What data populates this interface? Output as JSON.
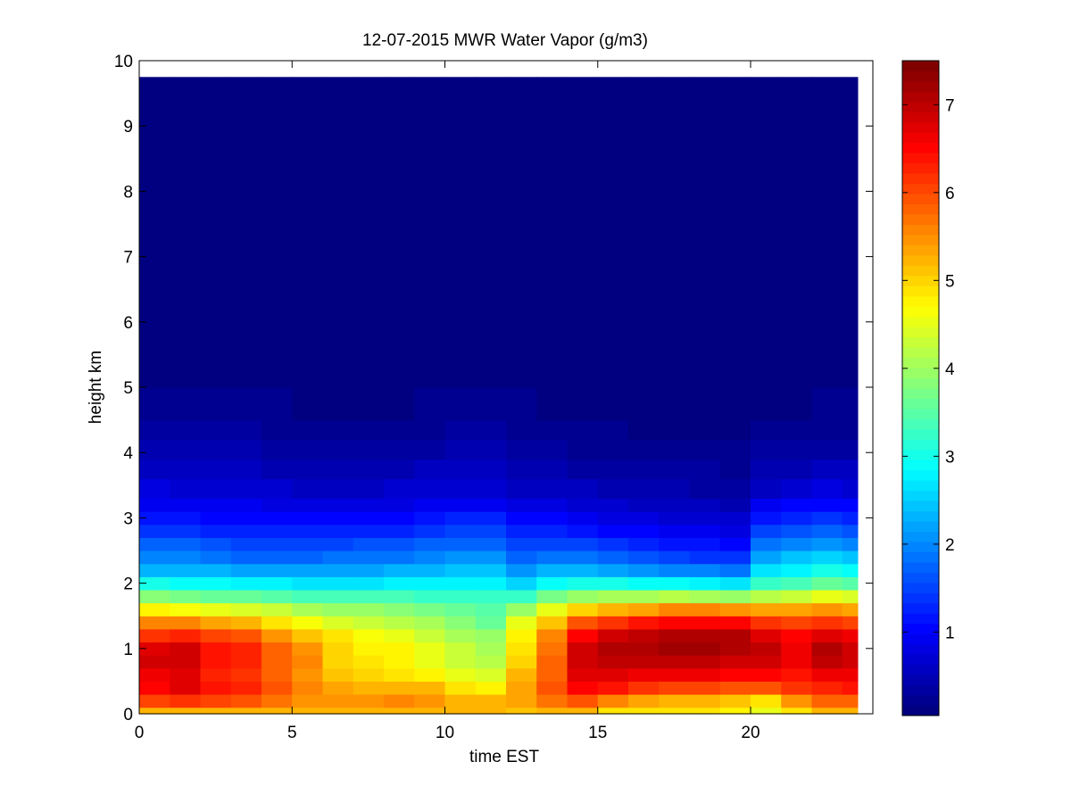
{
  "chart_data": {
    "type": "heatmap",
    "title": "12-07-2015 MWR Water Vapor (g/m3)",
    "xlabel": "time EST",
    "ylabel": "height km",
    "xlim": [
      0,
      24
    ],
    "ylim": [
      0,
      10
    ],
    "x_ticks": [
      "0",
      "5",
      "10",
      "15",
      "20"
    ],
    "x_tick_values": [
      0,
      5,
      10,
      15,
      20
    ],
    "y_ticks": [
      "0",
      "1",
      "2",
      "3",
      "4",
      "5",
      "6",
      "7",
      "8",
      "9",
      "10"
    ],
    "y_tick_values": [
      0,
      1,
      2,
      3,
      4,
      5,
      6,
      7,
      8,
      9,
      10
    ],
    "colorbar": {
      "range": [
        0.05,
        7.5
      ],
      "ticks": [
        "1",
        "2",
        "3",
        "4",
        "5",
        "6",
        "7"
      ],
      "tick_values": [
        1,
        2,
        3,
        4,
        5,
        6,
        7
      ],
      "colormap": "jet"
    },
    "time_hours": [
      0.5,
      1.5,
      2.5,
      3.5,
      4.5,
      5.5,
      6.5,
      7.5,
      8.5,
      9.5,
      10.5,
      11.5,
      12.5,
      13.5,
      14.5,
      15.5,
      16.5,
      17.5,
      18.5,
      19.5,
      20.5,
      21.5,
      22.5,
      23.5
    ],
    "profile_heights_km": [
      0,
      0.1,
      0.3,
      0.5,
      0.7,
      0.9,
      1.1,
      1.3,
      1.5,
      1.7,
      1.9,
      2.1,
      2.3,
      2.5,
      2.7,
      2.9,
      3.1,
      3.3,
      3.6,
      3.9,
      4.2,
      4.5,
      5.0,
      9.75
    ],
    "profiles": [
      [
        5.0,
        5.5,
        6.6,
        6.6,
        6.8,
        7.0,
        6.6,
        5.9,
        5.2,
        4.3,
        3.3,
        2.6,
        2.1,
        1.8,
        1.5,
        1.2,
        1.0,
        0.85,
        0.65,
        0.45,
        0.3,
        0.2,
        0.08,
        0.05
      ],
      [
        5.0,
        5.6,
        6.8,
        6.7,
        6.9,
        7.0,
        6.7,
        6.0,
        5.1,
        4.2,
        3.2,
        2.6,
        2.1,
        1.8,
        1.5,
        1.2,
        1.0,
        0.8,
        0.6,
        0.45,
        0.3,
        0.2,
        0.08,
        0.05
      ],
      [
        5.0,
        5.6,
        6.5,
        6.3,
        6.3,
        6.5,
        6.4,
        5.8,
        5.0,
        4.1,
        3.2,
        2.5,
        2.0,
        1.7,
        1.4,
        1.15,
        0.95,
        0.8,
        0.6,
        0.42,
        0.3,
        0.2,
        0.08,
        0.05
      ],
      [
        5.0,
        5.5,
        6.4,
        6.2,
        6.2,
        6.4,
        6.3,
        5.6,
        4.8,
        4.0,
        3.1,
        2.4,
        1.9,
        1.6,
        1.35,
        1.1,
        0.9,
        0.75,
        0.55,
        0.4,
        0.3,
        0.2,
        0.08,
        0.05
      ],
      [
        5.0,
        5.5,
        6.0,
        5.9,
        5.8,
        5.9,
        5.8,
        5.2,
        4.6,
        3.9,
        3.1,
        2.4,
        1.9,
        1.6,
        1.3,
        1.1,
        0.9,
        0.7,
        0.5,
        0.35,
        0.25,
        0.15,
        0.08,
        0.05
      ],
      [
        5.0,
        5.4,
        5.6,
        5.5,
        5.5,
        5.6,
        5.4,
        4.9,
        4.4,
        3.8,
        3.0,
        2.4,
        1.9,
        1.6,
        1.3,
        1.05,
        0.85,
        0.65,
        0.45,
        0.3,
        0.2,
        0.12,
        0.07,
        0.05
      ],
      [
        5.0,
        5.5,
        5.5,
        5.2,
        5.1,
        5.0,
        5.0,
        4.7,
        4.2,
        3.7,
        3.0,
        2.4,
        2.0,
        1.65,
        1.35,
        1.1,
        0.85,
        0.65,
        0.45,
        0.3,
        0.2,
        0.12,
        0.07,
        0.05
      ],
      [
        5.0,
        5.5,
        5.5,
        5.1,
        4.9,
        4.8,
        4.8,
        4.5,
        4.1,
        3.7,
        3.0,
        2.4,
        2.0,
        1.7,
        1.4,
        1.1,
        0.85,
        0.65,
        0.45,
        0.3,
        0.2,
        0.12,
        0.07,
        0.05
      ],
      [
        5.0,
        5.6,
        5.5,
        5.1,
        4.8,
        4.8,
        4.7,
        4.4,
        4.0,
        3.7,
        3.0,
        2.5,
        2.0,
        1.7,
        1.4,
        1.1,
        0.9,
        0.7,
        0.5,
        0.35,
        0.22,
        0.12,
        0.07,
        0.05
      ],
      [
        5.0,
        5.6,
        5.4,
        5.0,
        4.6,
        4.5,
        4.5,
        4.2,
        3.9,
        3.6,
        3.0,
        2.6,
        2.1,
        1.8,
        1.5,
        1.2,
        0.95,
        0.75,
        0.55,
        0.4,
        0.25,
        0.15,
        0.07,
        0.05
      ],
      [
        5.0,
        5.5,
        5.1,
        4.8,
        4.4,
        4.3,
        4.2,
        4.0,
        3.7,
        3.5,
        3.0,
        2.6,
        2.2,
        1.9,
        1.6,
        1.3,
        1.05,
        0.8,
        0.6,
        0.45,
        0.3,
        0.18,
        0.08,
        0.05
      ],
      [
        5.0,
        5.5,
        5.0,
        4.6,
        4.2,
        4.1,
        4.0,
        3.8,
        3.5,
        3.4,
        3.0,
        2.6,
        2.2,
        1.9,
        1.6,
        1.3,
        1.05,
        0.8,
        0.6,
        0.45,
        0.3,
        0.2,
        0.08,
        0.05
      ],
      [
        5.0,
        5.2,
        5.5,
        5.3,
        5.1,
        5.0,
        4.9,
        4.7,
        4.3,
        3.7,
        2.8,
        2.3,
        1.9,
        1.6,
        1.3,
        1.05,
        0.85,
        0.65,
        0.45,
        0.35,
        0.25,
        0.15,
        0.08,
        0.05
      ],
      [
        5.0,
        5.5,
        6.0,
        5.9,
        5.8,
        5.8,
        5.7,
        5.4,
        4.9,
        4.2,
        3.2,
        2.5,
        2.0,
        1.65,
        1.35,
        1.1,
        0.85,
        0.6,
        0.42,
        0.3,
        0.2,
        0.12,
        0.07,
        0.05
      ],
      [
        5.0,
        5.4,
        6.5,
        6.7,
        6.9,
        7.0,
        6.8,
        6.4,
        5.5,
        4.6,
        3.4,
        2.6,
        2.0,
        1.6,
        1.25,
        1.0,
        0.75,
        0.55,
        0.38,
        0.25,
        0.15,
        0.1,
        0.07,
        0.05
      ],
      [
        5.0,
        4.9,
        6.2,
        6.6,
        6.9,
        7.1,
        7.1,
        6.6,
        5.8,
        4.7,
        3.4,
        2.5,
        1.9,
        1.5,
        1.2,
        0.9,
        0.7,
        0.5,
        0.35,
        0.22,
        0.15,
        0.1,
        0.06,
        0.05
      ],
      [
        5.0,
        4.8,
        5.9,
        6.5,
        6.9,
        7.1,
        7.2,
        6.8,
        6.0,
        4.8,
        3.4,
        2.4,
        1.8,
        1.4,
        1.1,
        0.85,
        0.65,
        0.45,
        0.3,
        0.2,
        0.12,
        0.08,
        0.06,
        0.05
      ],
      [
        5.0,
        4.7,
        5.8,
        6.4,
        6.9,
        7.2,
        7.4,
        7.0,
        6.2,
        4.9,
        3.4,
        2.3,
        1.7,
        1.3,
        1.0,
        0.8,
        0.6,
        0.45,
        0.3,
        0.2,
        0.12,
        0.08,
        0.06,
        0.05
      ],
      [
        5.0,
        4.7,
        5.8,
        6.4,
        6.9,
        7.2,
        7.4,
        7.0,
        6.2,
        4.9,
        3.3,
        2.2,
        1.6,
        1.2,
        0.95,
        0.75,
        0.55,
        0.4,
        0.28,
        0.18,
        0.12,
        0.08,
        0.06,
        0.05
      ],
      [
        5.0,
        4.6,
        5.7,
        6.3,
        6.8,
        7.1,
        7.3,
        6.9,
        6.1,
        4.8,
        3.2,
        2.1,
        1.5,
        1.1,
        0.9,
        0.7,
        0.5,
        0.38,
        0.25,
        0.15,
        0.1,
        0.08,
        0.06,
        0.05
      ],
      [
        5.0,
        4.2,
        5.6,
        6.3,
        6.8,
        7.0,
        7.0,
        6.6,
        5.9,
        4.8,
        3.6,
        2.8,
        2.4,
        2.0,
        1.6,
        1.25,
        0.95,
        0.7,
        0.45,
        0.3,
        0.2,
        0.12,
        0.07,
        0.05
      ],
      [
        5.0,
        4.9,
        6.0,
        6.3,
        6.6,
        6.7,
        6.7,
        6.4,
        5.8,
        4.9,
        3.7,
        3.0,
        2.6,
        2.2,
        1.8,
        1.4,
        1.1,
        0.8,
        0.55,
        0.35,
        0.22,
        0.14,
        0.07,
        0.05
      ],
      [
        5.0,
        5.4,
        6.2,
        6.5,
        6.8,
        7.2,
        7.0,
        6.6,
        5.8,
        5.2,
        3.9,
        3.2,
        2.7,
        2.3,
        1.9,
        1.5,
        1.2,
        0.9,
        0.6,
        0.4,
        0.25,
        0.15,
        0.07,
        0.05
      ],
      [
        5.0,
        5.5,
        6.3,
        6.6,
        6.8,
        7.0,
        6.8,
        6.5,
        5.7,
        5.1,
        3.8,
        3.1,
        2.6,
        2.2,
        1.8,
        1.4,
        1.1,
        0.85,
        0.55,
        0.38,
        0.25,
        0.15,
        0.07,
        0.05
      ]
    ]
  }
}
